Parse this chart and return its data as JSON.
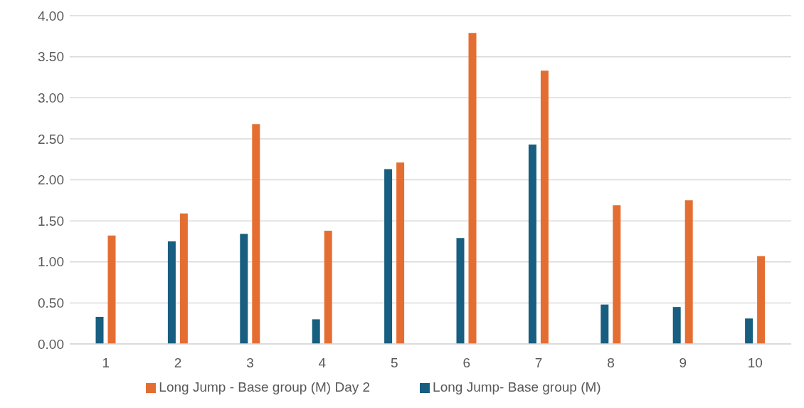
{
  "chart_data": {
    "type": "bar",
    "categories": [
      "1",
      "2",
      "3",
      "4",
      "5",
      "6",
      "7",
      "8",
      "9",
      "10"
    ],
    "series": [
      {
        "name": "Long Jump- Base group (M)",
        "color": "#175e80",
        "values": [
          0.33,
          1.25,
          1.34,
          0.3,
          2.13,
          1.29,
          2.43,
          0.48,
          0.45,
          0.31
        ]
      },
      {
        "name": "Long Jump - Base group (M) Day 2",
        "color": "#e46e32",
        "values": [
          1.32,
          1.59,
          2.68,
          1.38,
          2.21,
          3.79,
          3.33,
          1.69,
          1.75,
          1.07
        ]
      }
    ],
    "ylim": [
      0,
      4
    ],
    "yticks": [
      {
        "value": 0,
        "label": "0.00"
      },
      {
        "value": 0.5,
        "label": "0.50"
      },
      {
        "value": 1,
        "label": "1.00"
      },
      {
        "value": 1.5,
        "label": "1.50"
      },
      {
        "value": 2,
        "label": "2.00"
      },
      {
        "value": 2.5,
        "label": "2.50"
      },
      {
        "value": 3,
        "label": "3.00"
      },
      {
        "value": 3.5,
        "label": "3.50"
      },
      {
        "value": 4,
        "label": "4.00"
      }
    ],
    "grid": "y",
    "legend": "bottom"
  }
}
